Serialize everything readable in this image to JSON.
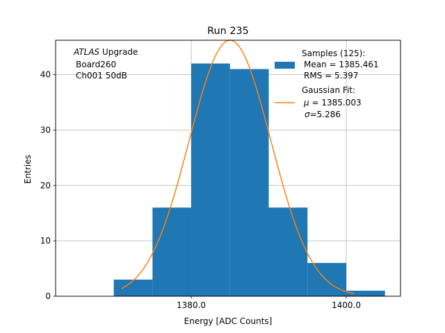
{
  "chart_data": {
    "type": "bar",
    "title": "Run 235",
    "xlabel": "Energy [ADC Counts]",
    "ylabel": "Entries",
    "xlim": [
      1362.5,
      1407.0
    ],
    "ylim": [
      0,
      46.2
    ],
    "grid": true,
    "x_ticks": [
      1380.0,
      1400.0
    ],
    "x_tick_labels": [
      "1380.0",
      "1400.0"
    ],
    "y_ticks": [
      0,
      10,
      20,
      30,
      40
    ],
    "y_tick_labels": [
      "0",
      "10",
      "20",
      "30",
      "40"
    ],
    "bar_color": "#1f77b4",
    "fit_color": "#ff7f0e",
    "histogram": {
      "bin_edges": [
        1370,
        1375,
        1380,
        1385,
        1390,
        1395,
        1400,
        1405
      ],
      "counts": [
        3,
        16,
        42,
        41,
        16,
        6,
        1
      ]
    },
    "gaussian_fit": {
      "amplitude": 46.2,
      "mu": 1385.003,
      "sigma": 5.286,
      "x_range": [
        1371.0,
        1401.0
      ]
    },
    "annotation": {
      "experiment": "ATLAS",
      "tag": "Upgrade",
      "line2": "Board260",
      "line3": "Ch001 50dB"
    },
    "legend": {
      "position": "top-right",
      "samples_title": "Samples (125):",
      "samples_mean": "Mean = 1385.461",
      "samples_rms": "RMS = 5.397",
      "fit_title": "Gaussian Fit:",
      "fit_mu": "= 1385.003",
      "fit_sigma": "=5.286",
      "mu_symbol": "μ",
      "sigma_symbol": "σ"
    }
  }
}
